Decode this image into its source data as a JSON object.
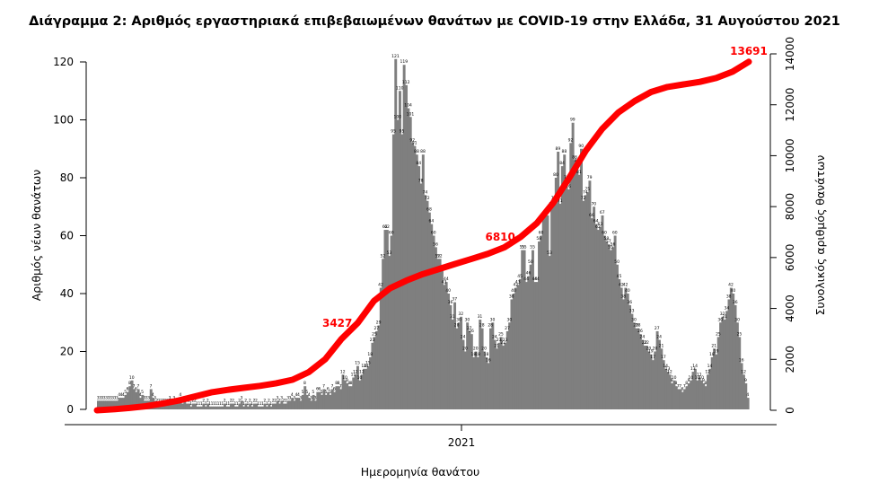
{
  "chart_data": {
    "type": "bar",
    "title": "Διάγραμμα 2: Αριθμός εργαστηριακά επιβεβαιωμένων θανάτων με COVID-19 στην Ελλάδα, 31 Αυγούστου 2021",
    "xlabel": "Ημερομηνία θανάτου",
    "ylabel": "Αριθμός νέων θανάτων",
    "y2label": "Συνολικός αριθμός θανάτων",
    "x_tick_labels": [
      "2021"
    ],
    "y_ticks": [
      0,
      20,
      40,
      60,
      80,
      100,
      120
    ],
    "y2_ticks": [
      0,
      2000,
      4000,
      6000,
      8000,
      10000,
      12000,
      14000
    ],
    "ylim": [
      0,
      120
    ],
    "y2lim": [
      0,
      14000
    ],
    "grid": false,
    "colors": {
      "bars": "#7f7f7f",
      "cumulative_line": "#ff0000",
      "bar_labels": "#000000"
    },
    "series": [
      {
        "name": "",
        "axis": "left",
        "kind": "bar",
        "values": [
          3,
          3,
          3,
          3,
          3,
          3,
          3,
          3,
          3,
          3,
          4,
          4,
          4,
          5,
          6,
          8,
          10,
          7,
          6,
          7,
          4,
          5,
          3,
          3,
          3,
          7,
          4,
          3,
          2,
          2,
          2,
          2,
          2,
          2,
          3,
          2,
          3,
          2,
          2,
          4,
          2,
          3,
          2,
          2,
          1,
          2,
          2,
          1,
          1,
          1,
          2,
          1,
          2,
          1,
          1,
          1,
          1,
          1,
          1,
          1,
          2,
          1,
          1,
          2,
          2,
          1,
          1,
          2,
          3,
          1,
          2,
          1,
          2,
          1,
          2,
          2,
          1,
          1,
          1,
          2,
          1,
          2,
          1,
          2,
          2,
          3,
          2,
          3,
          2,
          2,
          3,
          3,
          4,
          3,
          4,
          4,
          3,
          5,
          8,
          5,
          4,
          3,
          5,
          3,
          6,
          6,
          5,
          7,
          5,
          6,
          5,
          7,
          6,
          8,
          8,
          7,
          12,
          10,
          9,
          8,
          8,
          11,
          12,
          15,
          10,
          12,
          14,
          14,
          15,
          18,
          23,
          25,
          27,
          29,
          42,
          52,
          62,
          62,
          53,
          60,
          95,
          121,
          100,
          110,
          95,
          119,
          112,
          104,
          101,
          92,
          91,
          88,
          84,
          78,
          88,
          74,
          72,
          68,
          64,
          60,
          56,
          52,
          52,
          48,
          43,
          44,
          40,
          36,
          31,
          37,
          28,
          30,
          32,
          24,
          20,
          30,
          27,
          26,
          18,
          20,
          18,
          31,
          28,
          20,
          18,
          16,
          28,
          30,
          24,
          21,
          23,
          25,
          22,
          23,
          27,
          30,
          38,
          40,
          42,
          43,
          45,
          55,
          55,
          44,
          46,
          50,
          55,
          44,
          44,
          58,
          60,
          66,
          67,
          67,
          53,
          70,
          72,
          80,
          89,
          71,
          84,
          88,
          79,
          76,
          92,
          99,
          86,
          85,
          81,
          90,
          72,
          74,
          75,
          79,
          66,
          70,
          64,
          62,
          63,
          67,
          60,
          58,
          57,
          55,
          56,
          60,
          50,
          45,
          42,
          38,
          42,
          40,
          36,
          33,
          30,
          28,
          28,
          26,
          24,
          22,
          22,
          20,
          19,
          17,
          20,
          27,
          24,
          21,
          17,
          14,
          13,
          12,
          9,
          10,
          8,
          7,
          7,
          6,
          7,
          8,
          9,
          10,
          13,
          14,
          10,
          11,
          10,
          9,
          8,
          12,
          14,
          18,
          21,
          19,
          25,
          30,
          32,
          31,
          34,
          38,
          42,
          40,
          36,
          30,
          25,
          16,
          12,
          9,
          4
        ]
      },
      {
        "name": "",
        "axis": "right",
        "kind": "line",
        "values": [
          0,
          40,
          90,
          160,
          260,
          380,
          540,
          700,
          800,
          880,
          960,
          1060,
          1200,
          1500,
          2000,
          2800,
          3427,
          4300,
          4800,
          5100,
          5350,
          5550,
          5750,
          5950,
          6150,
          6400,
          6810,
          7350,
          8150,
          9150,
          10200,
          11050,
          11700,
          12150,
          12500,
          12700,
          12800,
          12900,
          13050,
          13300,
          13691
        ]
      }
    ],
    "annotations": [
      {
        "text": "3427",
        "series": 1,
        "index": 16
      },
      {
        "text": "6810",
        "series": 1,
        "index": 26
      },
      {
        "text": "13691",
        "series": 1,
        "index": 40
      }
    ]
  }
}
